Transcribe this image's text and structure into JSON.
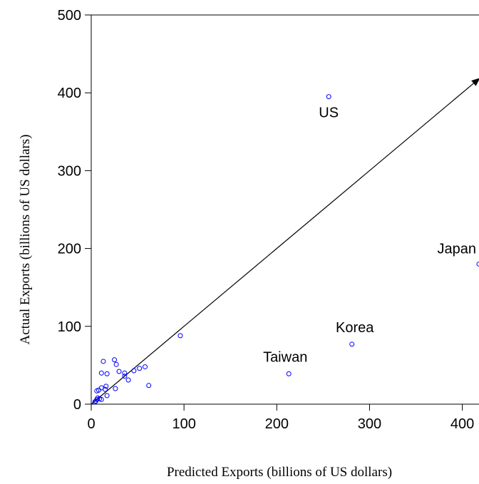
{
  "chart_data": {
    "type": "scatter",
    "title": "",
    "xlabel": "Predicted Exports (billions of US dollars)",
    "ylabel": "Actual Exports (billions of US dollars)",
    "xlim": [
      0,
      418
    ],
    "ylim": [
      0,
      500
    ],
    "xticks": [
      0,
      100,
      200,
      300,
      400
    ],
    "yticks": [
      0,
      100,
      200,
      300,
      400,
      500
    ],
    "grid": false,
    "marker_color": "#0000ff",
    "line_color": "#000000",
    "reference_line": {
      "from": [
        0,
        0
      ],
      "to": [
        418,
        418
      ],
      "arrowhead": true
    },
    "labels": [
      {
        "text": "US",
        "x": 256,
        "y": 395
      },
      {
        "text": "Japan",
        "x": 418,
        "y": 180
      },
      {
        "text": "Korea",
        "x": 281,
        "y": 77
      },
      {
        "text": "Taiwan",
        "x": 213,
        "y": 39
      }
    ],
    "points": [
      {
        "x": 256,
        "y": 395
      },
      {
        "x": 418,
        "y": 180
      },
      {
        "x": 281,
        "y": 77
      },
      {
        "x": 213,
        "y": 39
      },
      {
        "x": 96,
        "y": 88
      },
      {
        "x": 62,
        "y": 24
      },
      {
        "x": 58,
        "y": 48
      },
      {
        "x": 52,
        "y": 46
      },
      {
        "x": 46,
        "y": 43
      },
      {
        "x": 40,
        "y": 31
      },
      {
        "x": 36,
        "y": 40
      },
      {
        "x": 36,
        "y": 36
      },
      {
        "x": 30,
        "y": 42
      },
      {
        "x": 27,
        "y": 51
      },
      {
        "x": 25,
        "y": 57
      },
      {
        "x": 26,
        "y": 20
      },
      {
        "x": 17,
        "y": 39
      },
      {
        "x": 17,
        "y": 11
      },
      {
        "x": 16,
        "y": 23
      },
      {
        "x": 15,
        "y": 19
      },
      {
        "x": 13,
        "y": 55
      },
      {
        "x": 11,
        "y": 40
      },
      {
        "x": 11,
        "y": 21
      },
      {
        "x": 11,
        "y": 6
      },
      {
        "x": 8,
        "y": 18
      },
      {
        "x": 7,
        "y": 8
      },
      {
        "x": 6,
        "y": 17
      },
      {
        "x": 6,
        "y": 6
      },
      {
        "x": 5,
        "y": 4
      },
      {
        "x": 4,
        "y": 3
      },
      {
        "x": 9,
        "y": 7
      }
    ]
  }
}
